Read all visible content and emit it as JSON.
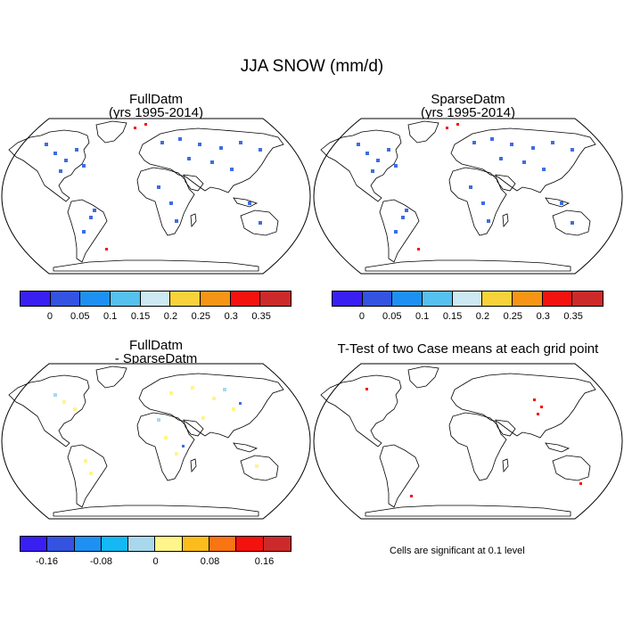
{
  "title": "JJA SNOW (mm/d)",
  "panels": {
    "top_left": {
      "line1": "FullDatm",
      "line2": "(yrs 1995-2014)"
    },
    "top_right": {
      "line1": "SparseDatm",
      "line2": "(yrs 1995-2014)"
    },
    "bottom_left": {
      "line1": "FullDatm",
      "line2": "- SparseDatm"
    },
    "bottom_right": {
      "line1": "T-Test of two Case means at each grid point"
    }
  },
  "colorbar_top": {
    "colors": [
      "#3a1ff2",
      "#3353e0",
      "#1e90f2",
      "#56c0ee",
      "#cce8f2",
      "#f7d23a",
      "#f69515",
      "#f4120e",
      "#cc2a2a"
    ],
    "labels": [
      "0",
      "0.05",
      "0.1",
      "0.15",
      "0.2",
      "0.25",
      "0.3",
      "0.35"
    ]
  },
  "colorbar_bottom": {
    "colors": [
      "#3a1ff2",
      "#3353e0",
      "#1e90f2",
      "#13b8f4",
      "#a8d8ee",
      "#fff58a",
      "#fcbd1c",
      "#f97412",
      "#f4120e",
      "#cc2a2a"
    ],
    "labels": [
      "-0.16",
      "-0.08",
      "0",
      "0.08",
      "0.16"
    ]
  },
  "significance_note": "Cells are significant at 0.1 level"
}
